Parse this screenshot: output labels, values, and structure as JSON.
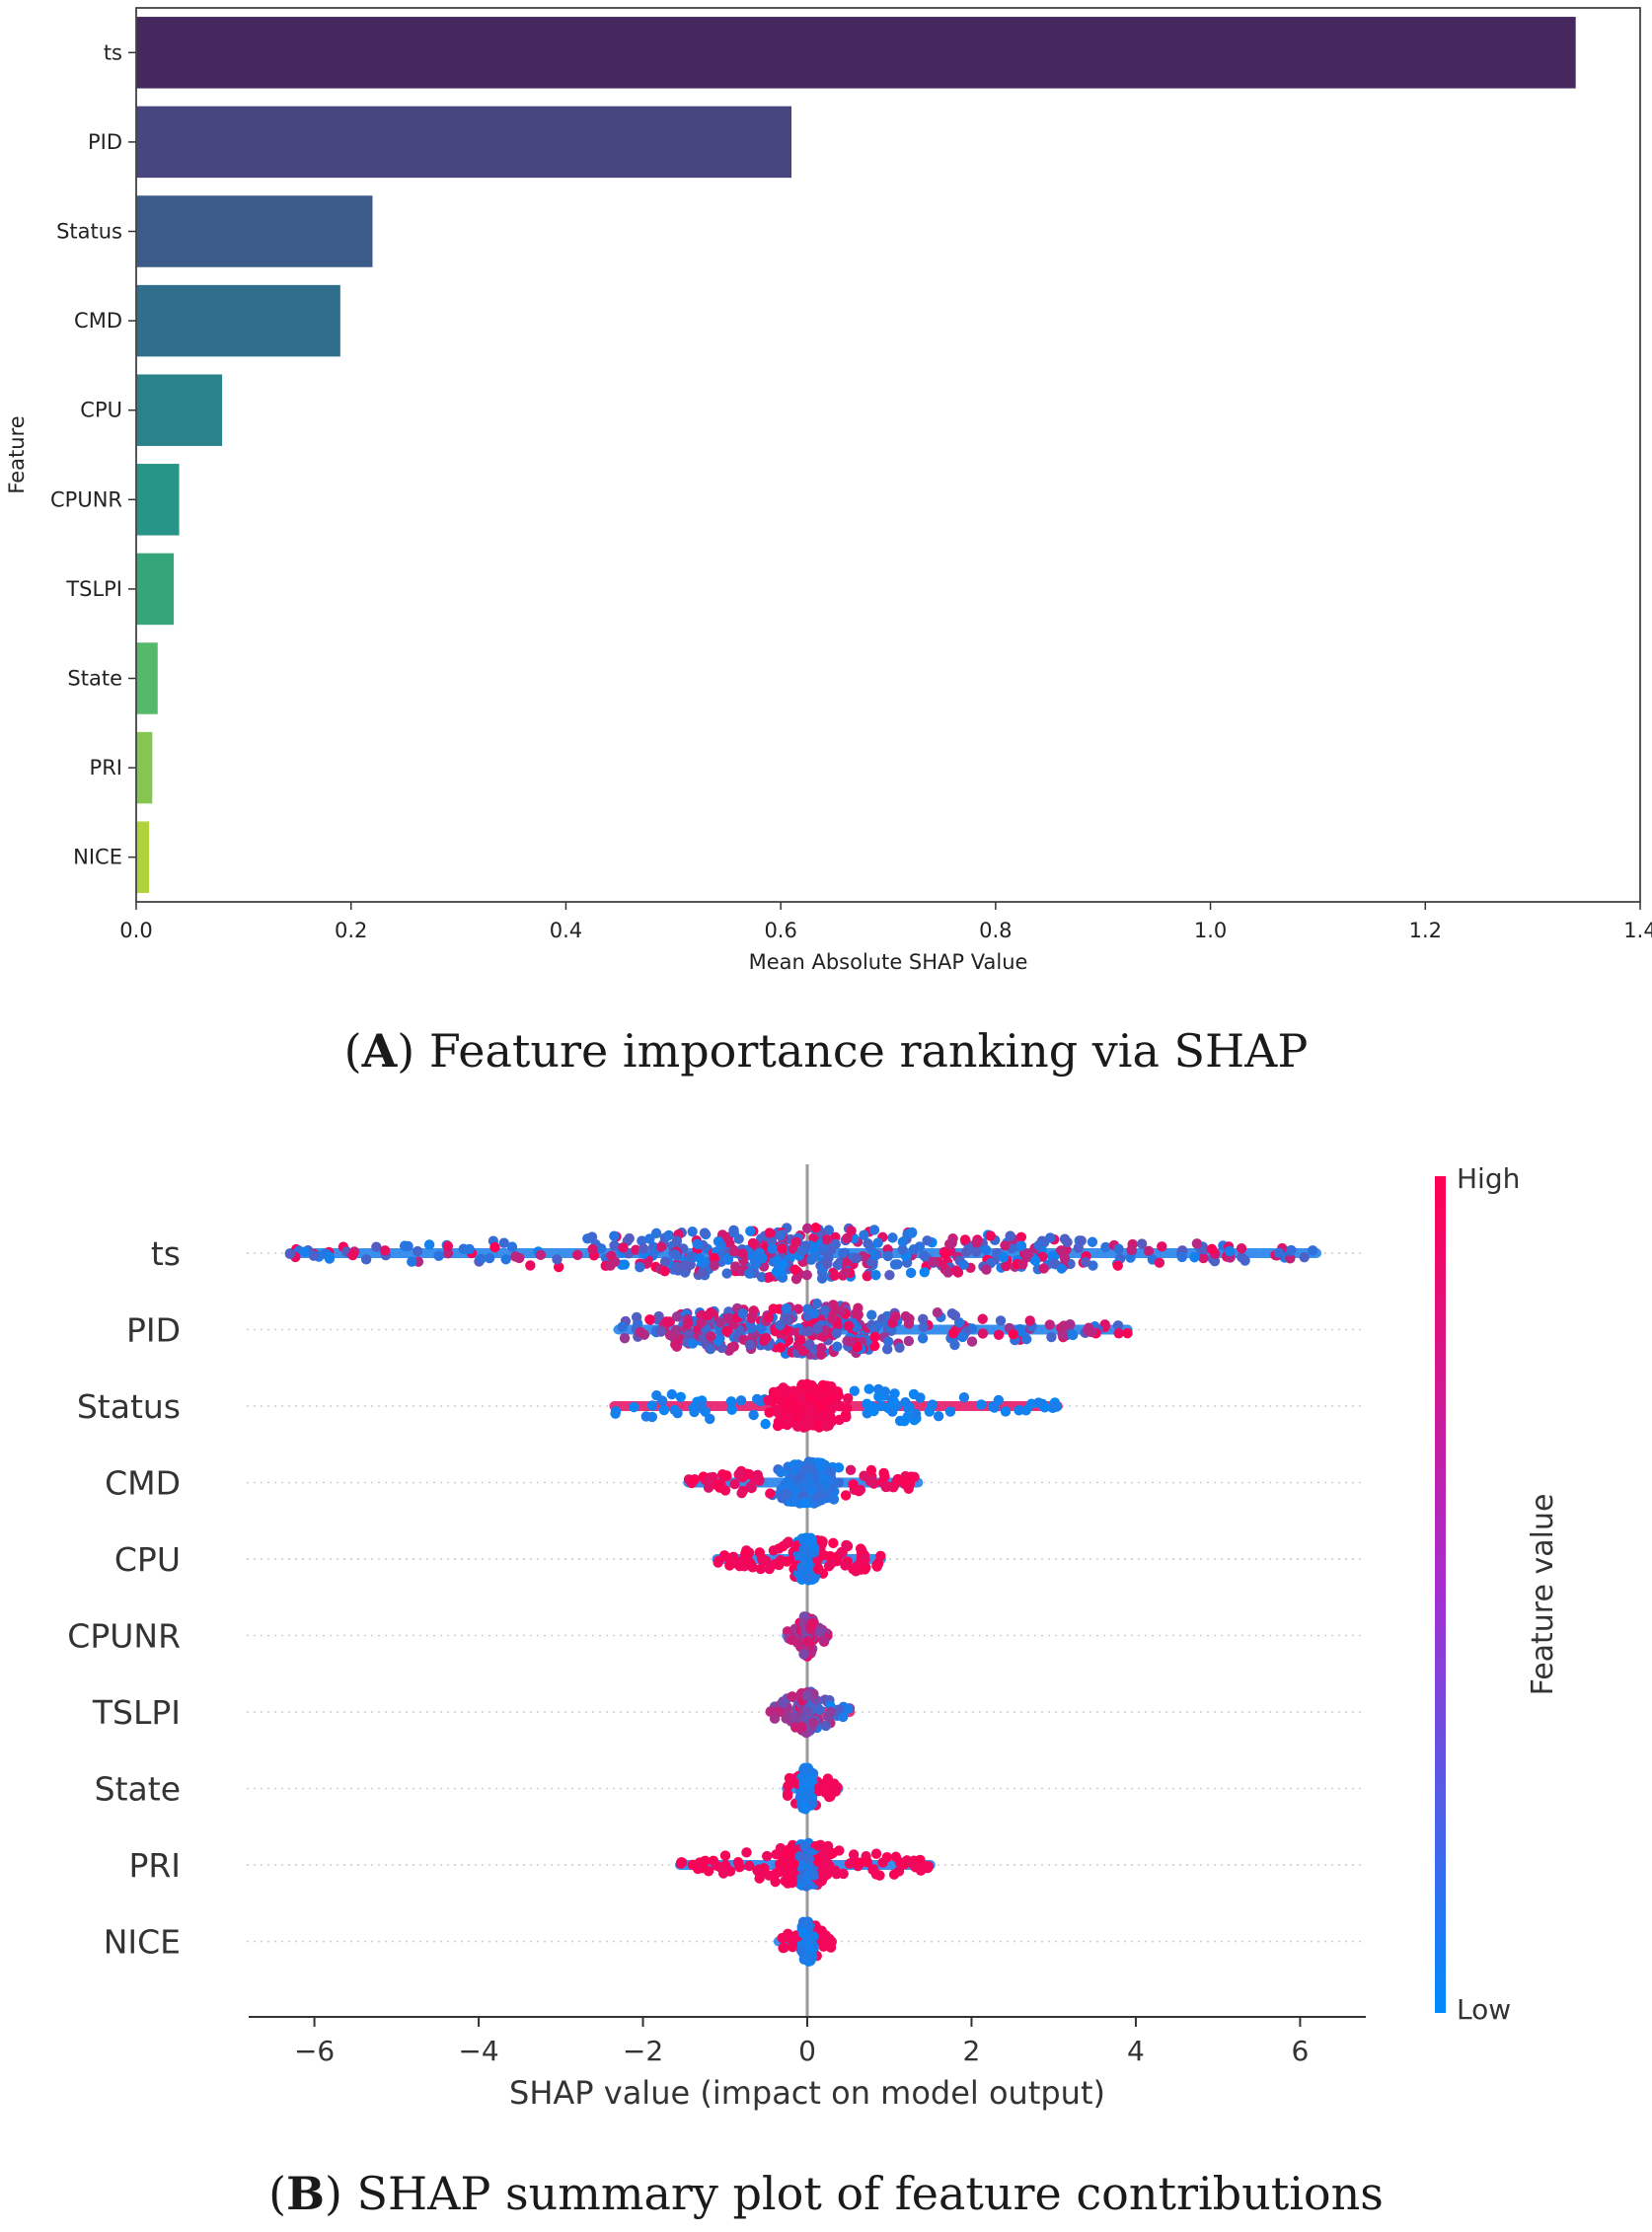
{
  "chart_data": [
    {
      "id": "A",
      "type": "bar",
      "orientation": "horizontal",
      "title": "",
      "xlabel": "Mean Absolute SHAP Value",
      "ylabel": "Feature",
      "xlim": [
        0.0,
        1.4
      ],
      "xticks": [
        "0.0",
        "0.2",
        "0.4",
        "0.6",
        "0.8",
        "1.0",
        "1.2",
        "1.4"
      ],
      "categories": [
        "ts",
        "PID",
        "Status",
        "CMD",
        "CPU",
        "CPUNR",
        "TSLPI",
        "State",
        "PRI",
        "NICE"
      ],
      "values": [
        1.34,
        0.61,
        0.22,
        0.19,
        0.08,
        0.04,
        0.035,
        0.02,
        0.015,
        0.012
      ],
      "colors": [
        "#46285f",
        "#47467e",
        "#3c5a8a",
        "#316e8c",
        "#2a828b",
        "#269588",
        "#35a67a",
        "#55b96a",
        "#86c650",
        "#b0d23b"
      ],
      "grid": false
    },
    {
      "id": "B",
      "type": "scatter",
      "subtype": "shap-beeswarm",
      "title": "",
      "xlabel": "SHAP value (impact on model output)",
      "xlim": [
        -6.8,
        6.8
      ],
      "xticks": [
        "−6",
        "−4",
        "−2",
        "0",
        "2",
        "4",
        "6"
      ],
      "features": [
        "ts",
        "PID",
        "Status",
        "CMD",
        "CPU",
        "CPUNR",
        "TSLPI",
        "State",
        "PRI",
        "NICE"
      ],
      "feature_ranges": [
        [
          -6.3,
          6.2
        ],
        [
          -2.3,
          3.9
        ],
        [
          -2.35,
          3.05
        ],
        [
          -1.45,
          1.35
        ],
        [
          -1.1,
          0.9
        ],
        [
          -0.25,
          0.25
        ],
        [
          -0.45,
          0.52
        ],
        [
          -0.25,
          0.38
        ],
        [
          -1.55,
          1.5
        ],
        [
          -0.35,
          0.3
        ]
      ],
      "colorbar": {
        "label": "Feature value",
        "high_label": "High",
        "low_label": "Low",
        "high_color": "#ff0052",
        "low_color": "#008bfb"
      },
      "grid": false
    }
  ],
  "captions": {
    "a": {
      "letter": "A",
      "text": "Feature importance ranking via SHAP"
    },
    "b": {
      "letter": "B",
      "text": "SHAP summary plot of feature contributions"
    }
  }
}
